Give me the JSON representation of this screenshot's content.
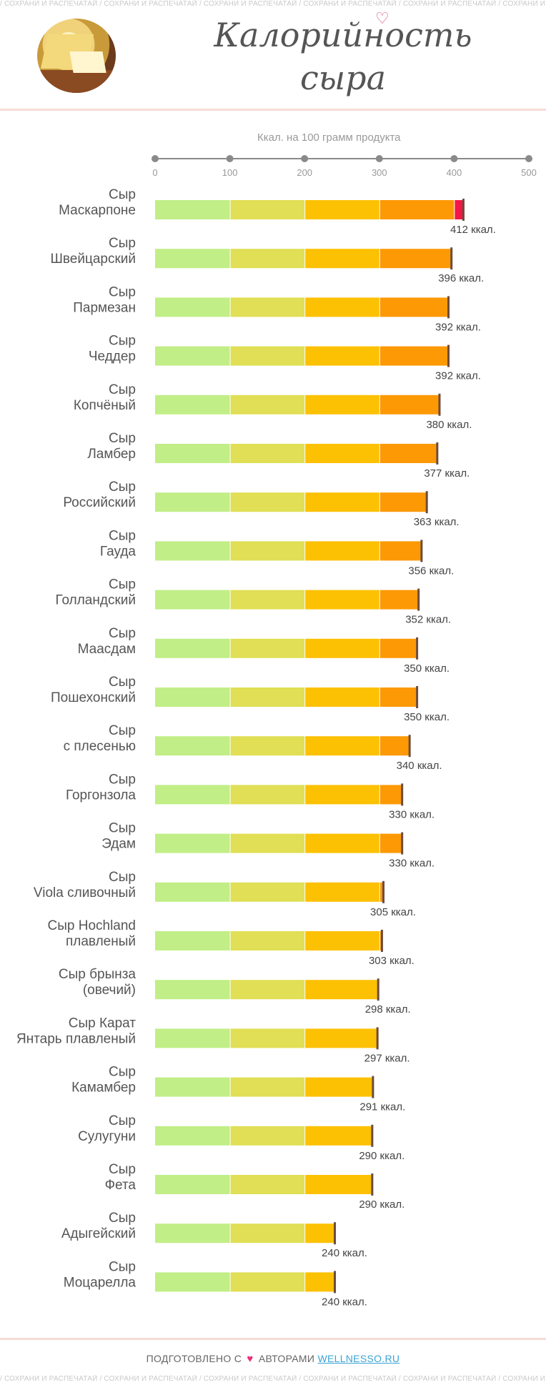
{
  "watermark": "/ СОХРАНИ И РАСПЕЧАТАЙ / СОХРАНИ И РАСПЕЧАТАЙ / СОХРАНИ И РАСПЕЧАТАЙ / СОХРАНИ И РАСПЕЧАТАЙ / СОХРАНИ И РАСПЕЧАТАЙ / СОХРАНИ И РАСПЕЧАТАЙ",
  "title_line1": "Калорийность",
  "title_line2": "сыра",
  "footer": {
    "prefix": "ПОДГОТОВЛЕНО С",
    "suffix": "АВТОРАМИ",
    "site": "WELLNESSO.RU"
  },
  "colors": {
    "segments": [
      "#c1ee87",
      "#e0df55",
      "#fdc103",
      "#fd9905",
      "#f41647"
    ],
    "marker": "#6d4c3a",
    "axis": "#8a8a8a"
  },
  "chart_data": {
    "type": "bar",
    "orientation": "horizontal",
    "xlabel": "Ккал. на 100 грамм продукта",
    "xticks": [
      "0",
      "100",
      "200",
      "300",
      "400",
      "500"
    ],
    "xlim": [
      0,
      500
    ],
    "unit_suffix": " ккал.",
    "categories": [
      [
        "Сыр",
        "Маскарпоне"
      ],
      [
        "Сыр",
        "Швейцарский"
      ],
      [
        "Сыр",
        "Пармезан"
      ],
      [
        "Сыр",
        "Чеддер"
      ],
      [
        "Сыр",
        "Копчёный"
      ],
      [
        "Сыр",
        "Ламбер"
      ],
      [
        "Сыр",
        "Российский"
      ],
      [
        "Сыр",
        "Гауда"
      ],
      [
        "Сыр",
        "Голландский"
      ],
      [
        "Сыр",
        "Маасдам"
      ],
      [
        "Сыр",
        "Пошехонский"
      ],
      [
        "Сыр",
        "с плесенью"
      ],
      [
        "Сыр",
        "Горгонзола"
      ],
      [
        "Сыр",
        "Эдам"
      ],
      [
        "Сыр",
        "Viola сливочный"
      ],
      [
        "Сыр Hochland",
        "плавленый"
      ],
      [
        "Сыр брынза",
        "(овечий)"
      ],
      [
        "Сыр Карат",
        "Янтарь плавленый"
      ],
      [
        "Сыр",
        "Камамбер"
      ],
      [
        "Сыр",
        "Сулугуни"
      ],
      [
        "Сыр",
        "Фета"
      ],
      [
        "Сыр",
        "Адыгейский"
      ],
      [
        "Сыр",
        "Моцарелла"
      ]
    ],
    "values": [
      412,
      396,
      392,
      392,
      380,
      377,
      363,
      356,
      352,
      350,
      350,
      340,
      330,
      330,
      305,
      303,
      298,
      297,
      291,
      290,
      290,
      240,
      240
    ]
  }
}
